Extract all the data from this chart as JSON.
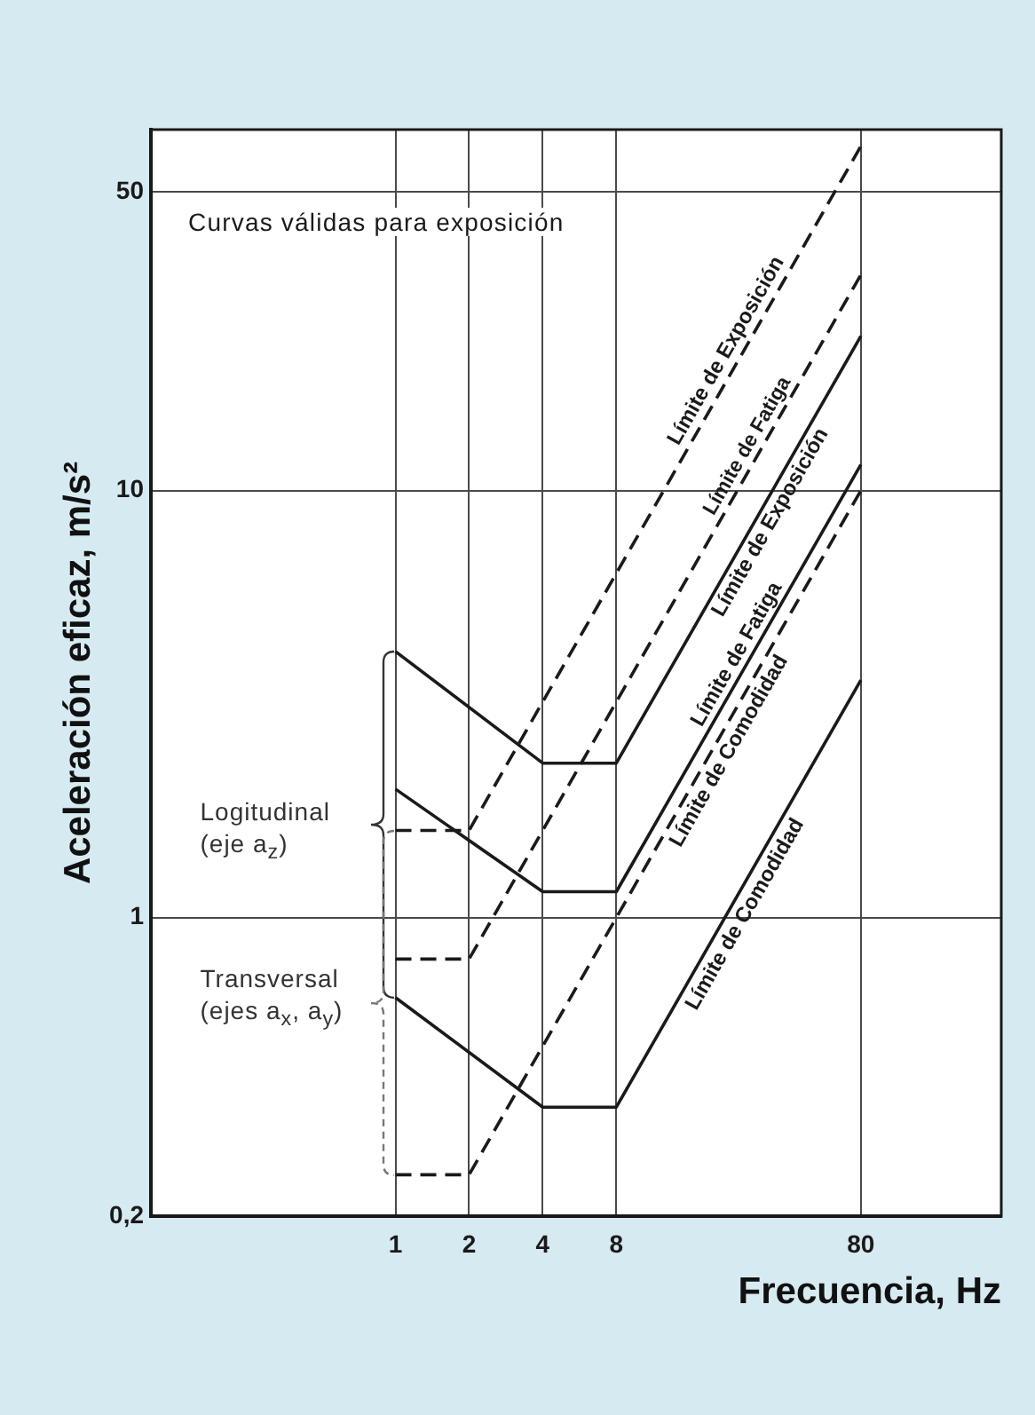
{
  "chart_data": {
    "type": "line",
    "xlabel": "Frecuencia, Hz",
    "ylabel": "Aceleración eficaz, m/s²",
    "annotations": [
      "Curvas válidas para exposición",
      {
        "text": "Logitudinal (eje a$_{z}$)",
        "x": 1,
        "y": 1.6
      },
      {
        "text": "Transversal (ejes a$_{x}$, a$_{y}$)",
        "x": 1,
        "y": 0.65
      }
    ],
    "series": [
      {
        "name": "Límite de Exposición",
        "color": "#1a1a1a",
        "line_style": "solid",
        "x": [
          1,
          4,
          8,
          80
        ],
        "values": [
          4.2,
          2.3,
          2.3,
          23
        ]
      },
      {
        "name": "Límite de Fatiga",
        "color": "#1a1a1a",
        "line_style": "solid",
        "x": [
          1,
          4,
          8,
          80
        ],
        "values": [
          2.0,
          1.15,
          1.15,
          11.5
        ]
      },
      {
        "name": "Límite de Comodidad",
        "color": "#1a1a1a",
        "line_style": "solid",
        "x": [
          1,
          4,
          8,
          80
        ],
        "values": [
          0.65,
          0.36,
          0.36,
          3.6
        ]
      },
      {
        "name": "Límite de Exposición",
        "color": "#1a1a1a",
        "line_style": "dashed",
        "x": [
          1,
          2,
          80
        ],
        "values": [
          1.6,
          1.6,
          64
        ]
      },
      {
        "name": "Límite de Fatiga",
        "color": "#1a1a1a",
        "line_style": "dashed",
        "x": [
          1,
          2,
          80
        ],
        "values": [
          0.8,
          0.8,
          32
        ]
      },
      {
        "name": "Límite de Comodidad",
        "color": "#1a1a1a",
        "line_style": "dashed",
        "x": [
          1,
          2,
          80
        ],
        "values": [
          0.25,
          0.25,
          10
        ]
      }
    ],
    "xlim": [
      0.1,
      300
    ],
    "ylim": [
      0.2,
      70
    ],
    "xticks": [
      1,
      2,
      4,
      8,
      80
    ],
    "yticks": [
      {
        "value": 0.2,
        "label": "0,2"
      },
      1,
      10,
      50
    ],
    "log": "xy",
    "grid": true
  }
}
